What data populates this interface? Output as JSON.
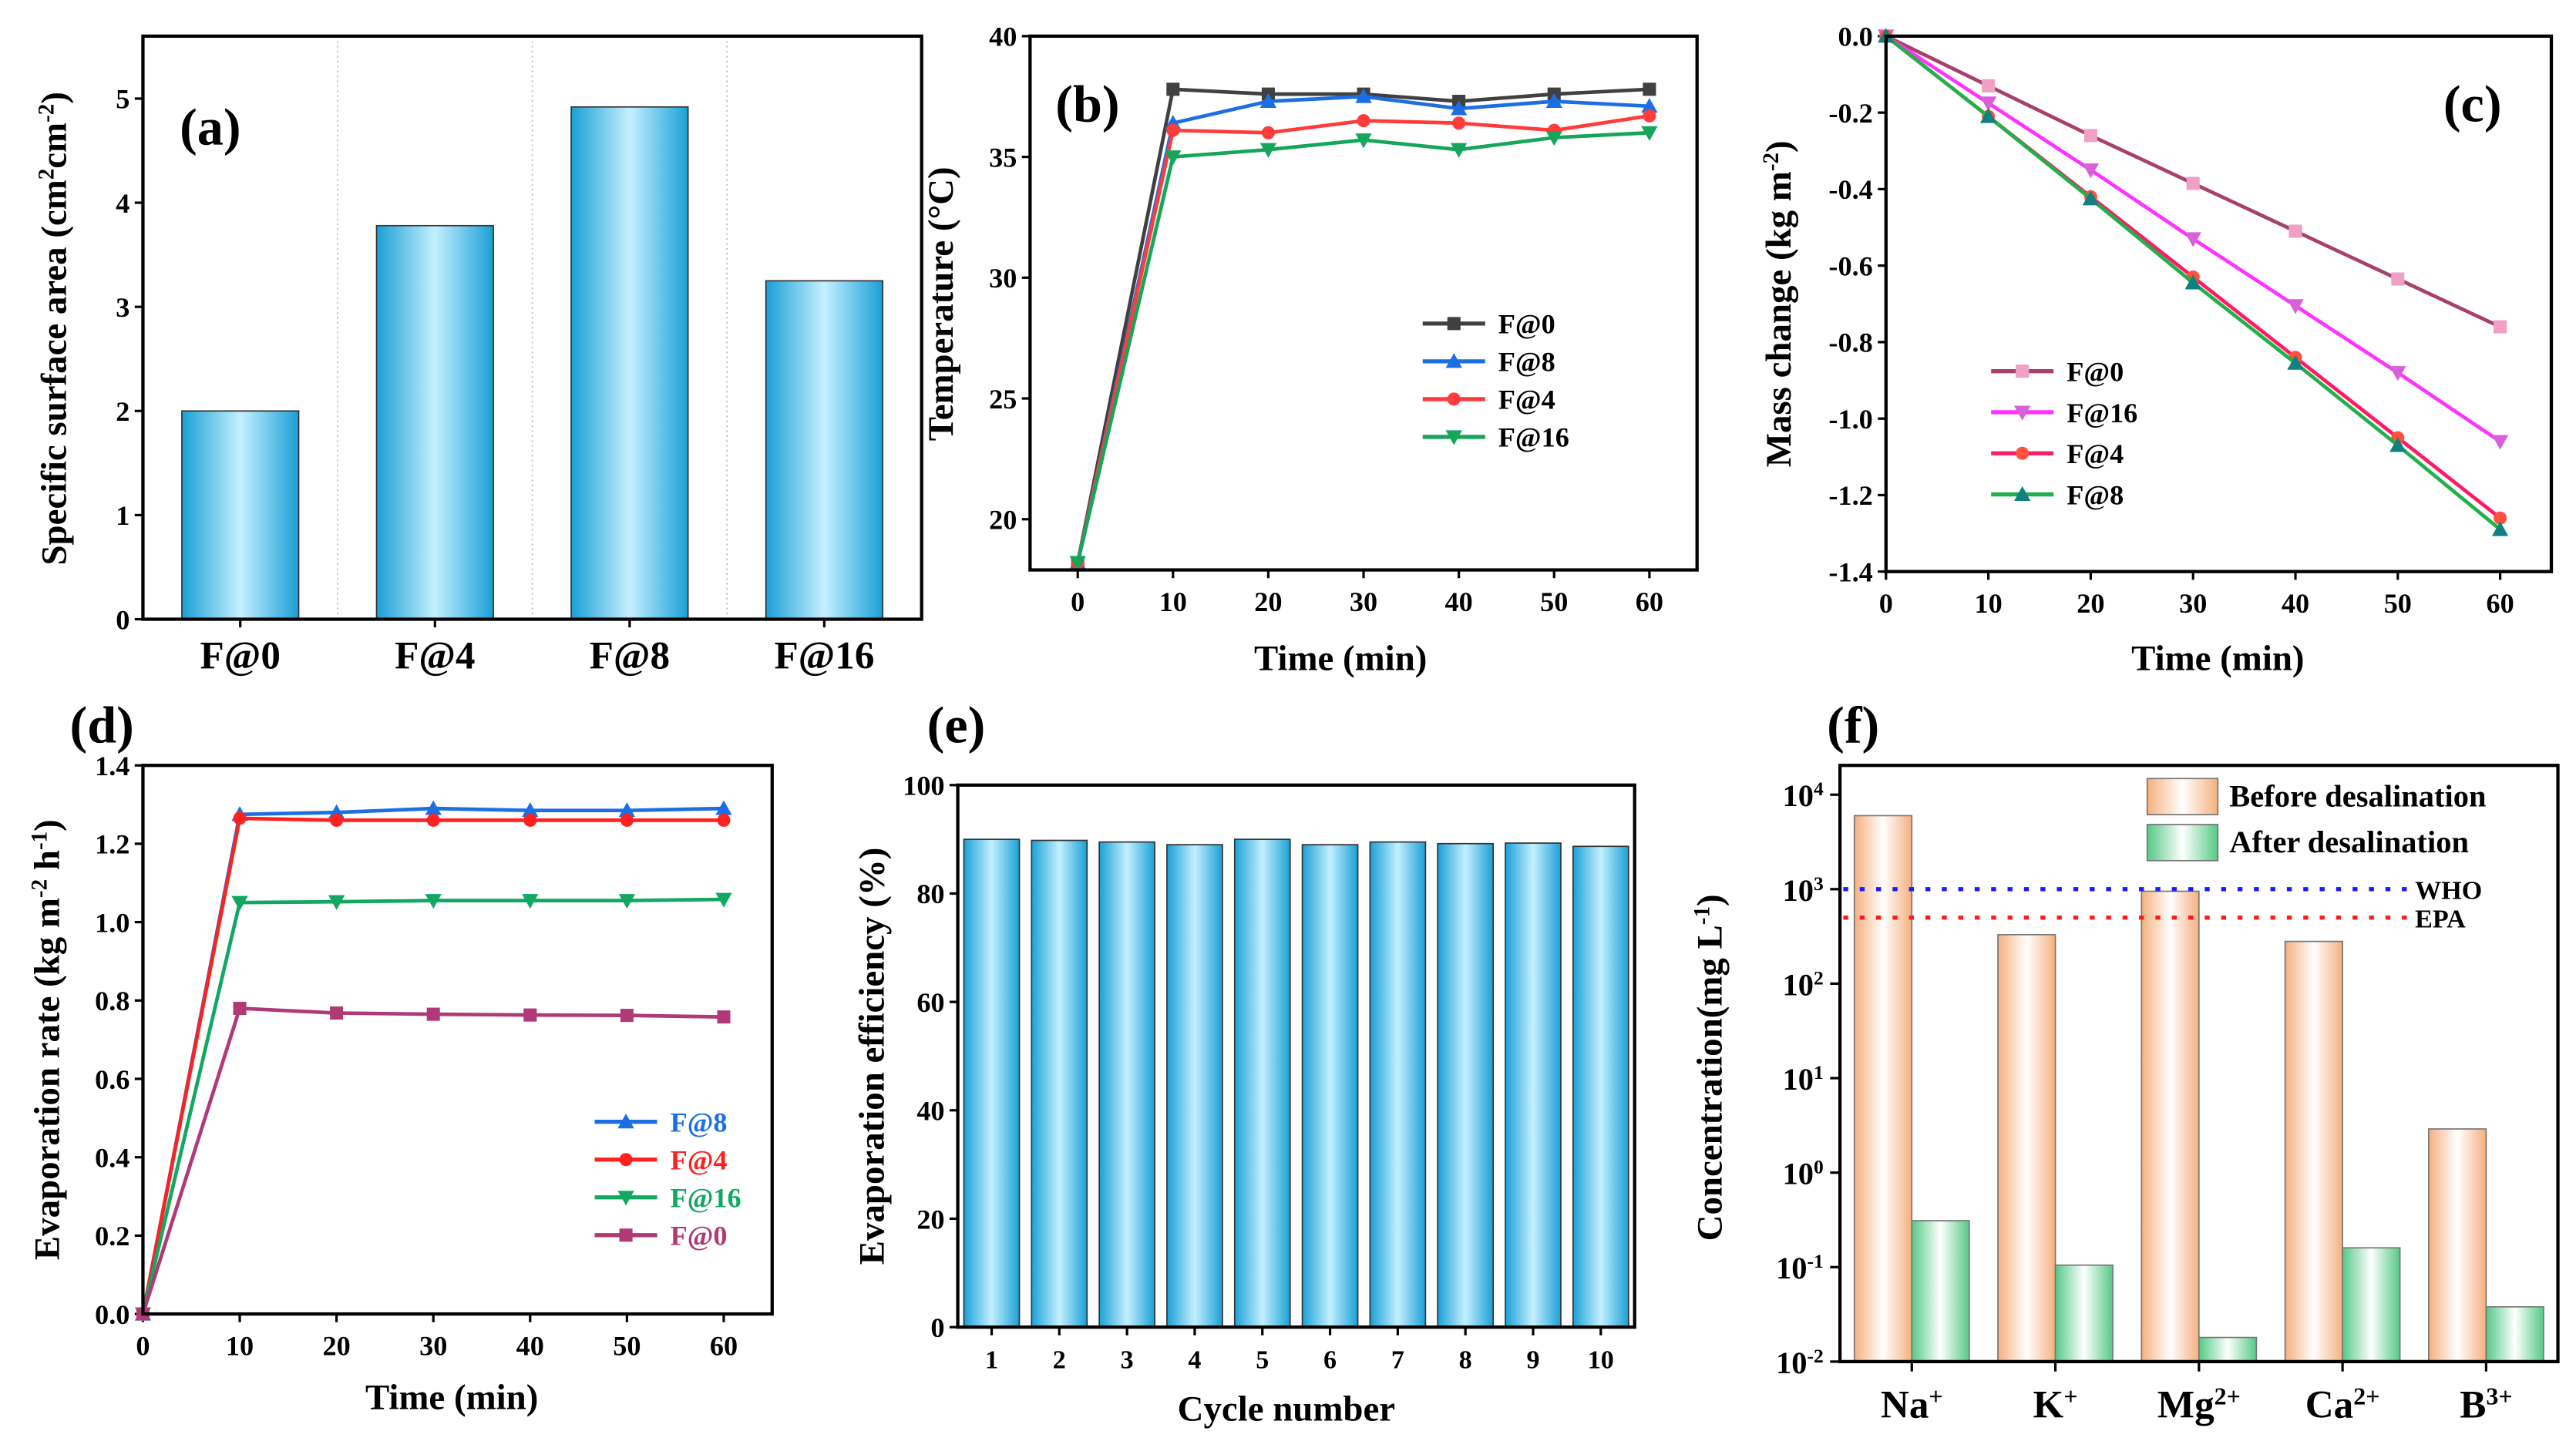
{
  "chart_data": [
    {
      "panel": "(a)",
      "type": "bar",
      "categories": [
        "F@0",
        "F@4",
        "F@8",
        "F@16"
      ],
      "values": [
        2.0,
        3.78,
        4.92,
        3.25
      ],
      "ylabel": [
        {
          "t": "Specific surface area (cm"
        },
        {
          "t": "2",
          "sup": true
        },
        {
          "t": "cm"
        },
        {
          "t": "-2",
          "sup": true
        },
        {
          "t": ")"
        }
      ],
      "xlabel": "",
      "ylim": [
        0,
        5.6
      ],
      "yticks": [
        "0",
        "1",
        "2",
        "3",
        "4",
        "5"
      ],
      "bar_color": "#1fa6d9"
    },
    {
      "panel": "(b)",
      "type": "line",
      "x": [
        0,
        10,
        20,
        30,
        40,
        50,
        60
      ],
      "series": [
        {
          "name": "F@0",
          "color": "#404040",
          "marker": "square",
          "values": [
            18.2,
            37.8,
            37.6,
            37.6,
            37.3,
            37.6,
            37.8
          ]
        },
        {
          "name": "F@8",
          "color": "#1c6fe3",
          "marker": "triangle-up",
          "values": [
            18.2,
            36.4,
            37.3,
            37.5,
            37.0,
            37.3,
            37.1
          ]
        },
        {
          "name": "F@4",
          "color": "#ff3b3b",
          "marker": "circle",
          "values": [
            18.2,
            36.1,
            36.0,
            36.5,
            36.4,
            36.1,
            36.7
          ]
        },
        {
          "name": "F@16",
          "color": "#16a65a",
          "marker": "triangle-down",
          "values": [
            18.2,
            35.0,
            35.3,
            35.7,
            35.3,
            35.8,
            36.0
          ]
        }
      ],
      "xlabel": "Time (min)",
      "ylabel": [
        {
          "t": "Temperature (°C)"
        }
      ],
      "xlim": [
        -5,
        65
      ],
      "ylim": [
        17.9,
        40
      ],
      "xticks": [
        "0",
        "10",
        "20",
        "30",
        "40",
        "50",
        "60"
      ],
      "yticks": [
        "20",
        "25",
        "30",
        "35",
        "40"
      ],
      "legend": "center-right"
    },
    {
      "panel": "(c)",
      "type": "line",
      "x": [
        0,
        10,
        20,
        30,
        40,
        50,
        60
      ],
      "series": [
        {
          "name": "F@0",
          "color": "#a8406e",
          "marker_color": "#f0a0c4",
          "marker": "square",
          "values": [
            0,
            -0.13,
            -0.26,
            -0.385,
            -0.51,
            -0.635,
            -0.76
          ]
        },
        {
          "name": "F@16",
          "color": "#ff33ff",
          "marker_color": "#d860d8",
          "marker": "triangle-down",
          "values": [
            0,
            -0.175,
            -0.35,
            -0.53,
            -0.705,
            -0.88,
            -1.06
          ]
        },
        {
          "name": "F@4",
          "color": "#ff1a66",
          "marker_color": "#ff5040",
          "marker": "circle",
          "values": [
            0,
            -0.21,
            -0.42,
            -0.63,
            -0.84,
            -1.05,
            -1.26
          ]
        },
        {
          "name": "F@8",
          "color": "#22b04a",
          "marker_color": "#108080",
          "marker": "triangle-up",
          "values": [
            0,
            -0.21,
            -0.425,
            -0.645,
            -0.855,
            -1.07,
            -1.29
          ]
        }
      ],
      "xlabel": "Time (min)",
      "ylabel": [
        {
          "t": "Mass change (kg m"
        },
        {
          "t": "-2",
          "sup": true
        },
        {
          "t": ")"
        }
      ],
      "xlim": [
        0,
        65
      ],
      "ylim": [
        -1.4,
        0
      ],
      "xticks": [
        "0",
        "10",
        "20",
        "30",
        "40",
        "50",
        "60"
      ],
      "yticks": [
        "-1.4",
        "-1.2",
        "-1.0",
        "-0.8",
        "-0.6",
        "-0.4",
        "-0.2",
        "0.0"
      ],
      "legend": "bottom-left"
    },
    {
      "panel": "(d)",
      "type": "line",
      "x": [
        0,
        10,
        20,
        30,
        40,
        50,
        60
      ],
      "series": [
        {
          "name": "F@8",
          "color": "#1c6fe3",
          "marker": "triangle-up",
          "values": [
            0,
            1.275,
            1.28,
            1.29,
            1.285,
            1.285,
            1.29
          ]
        },
        {
          "name": "F@4",
          "color": "#ff2020",
          "marker": "circle",
          "values": [
            0,
            1.265,
            1.26,
            1.26,
            1.26,
            1.26,
            1.26
          ]
        },
        {
          "name": "F@16",
          "color": "#12a862",
          "marker": "triangle-down",
          "values": [
            0,
            1.05,
            1.052,
            1.055,
            1.055,
            1.055,
            1.058
          ]
        },
        {
          "name": "F@0",
          "color": "#b03a78",
          "marker": "square",
          "values": [
            0,
            0.78,
            0.768,
            0.765,
            0.763,
            0.762,
            0.758
          ]
        }
      ],
      "xlabel": "Time (min)",
      "ylabel": [
        {
          "t": "Evaporation rate (kg m"
        },
        {
          "t": "-2",
          "sup": true
        },
        {
          "t": " h"
        },
        {
          "t": "-1",
          "sup": true
        },
        {
          "t": ")"
        }
      ],
      "xlim": [
        0,
        65
      ],
      "ylim": [
        0,
        1.4
      ],
      "xticks": [
        "0",
        "10",
        "20",
        "30",
        "40",
        "50",
        "60"
      ],
      "yticks": [
        "0.0",
        "0.2",
        "0.4",
        "0.6",
        "0.8",
        "1.0",
        "1.2",
        "1.4"
      ],
      "legend": "bottom-right"
    },
    {
      "panel": "(e)",
      "type": "bar",
      "categories": [
        "1",
        "2",
        "3",
        "4",
        "5",
        "6",
        "7",
        "8",
        "9",
        "10"
      ],
      "values": [
        90.0,
        89.8,
        89.5,
        89.0,
        90.0,
        89.0,
        89.5,
        89.2,
        89.3,
        88.7
      ],
      "xlabel": "Cycle number",
      "ylabel": [
        {
          "t": "Evaporation efficiency (%)"
        }
      ],
      "ylim": [
        0,
        100
      ],
      "yticks": [
        "0",
        "20",
        "40",
        "60",
        "80",
        "100"
      ],
      "bar_color": "#1fa6d9"
    },
    {
      "panel": "(f)",
      "type": "bar",
      "yscale": "log",
      "categories": [
        {
          "base": "Na",
          "sup": "+"
        },
        {
          "base": "K",
          "sup": "+"
        },
        {
          "base": "Mg",
          "sup": "2+"
        },
        {
          "base": "Ca",
          "sup": "2+"
        },
        {
          "base": "B",
          "sup": "3+"
        }
      ],
      "series": [
        {
          "name": "Before desalination",
          "color": "#f5b07e",
          "values": [
            6000,
            330,
            950,
            280,
            2.9
          ]
        },
        {
          "name": "After desalination",
          "color": "#55c985",
          "values": [
            0.31,
            0.105,
            0.018,
            0.16,
            0.038
          ]
        }
      ],
      "reference_lines": [
        {
          "name": "WHO",
          "value": 1000,
          "color": "#1a1aff"
        },
        {
          "name": "EPA",
          "value": 500,
          "color": "#ff1a1a"
        }
      ],
      "xlabel": "",
      "ylabel": [
        {
          "t": "Concentration(mg L"
        },
        {
          "t": "-1",
          "sup": true
        },
        {
          "t": ")"
        }
      ],
      "ylim_log10": [
        -2,
        4.31
      ],
      "yticks": [
        {
          "b": "10",
          "e": "-2"
        },
        {
          "b": "10",
          "e": "-1"
        },
        {
          "b": "10",
          "e": "0"
        },
        {
          "b": "10",
          "e": "1"
        },
        {
          "b": "10",
          "e": "2"
        },
        {
          "b": "10",
          "e": "3"
        },
        {
          "b": "10",
          "e": "4"
        }
      ],
      "legend": "top-right"
    }
  ]
}
